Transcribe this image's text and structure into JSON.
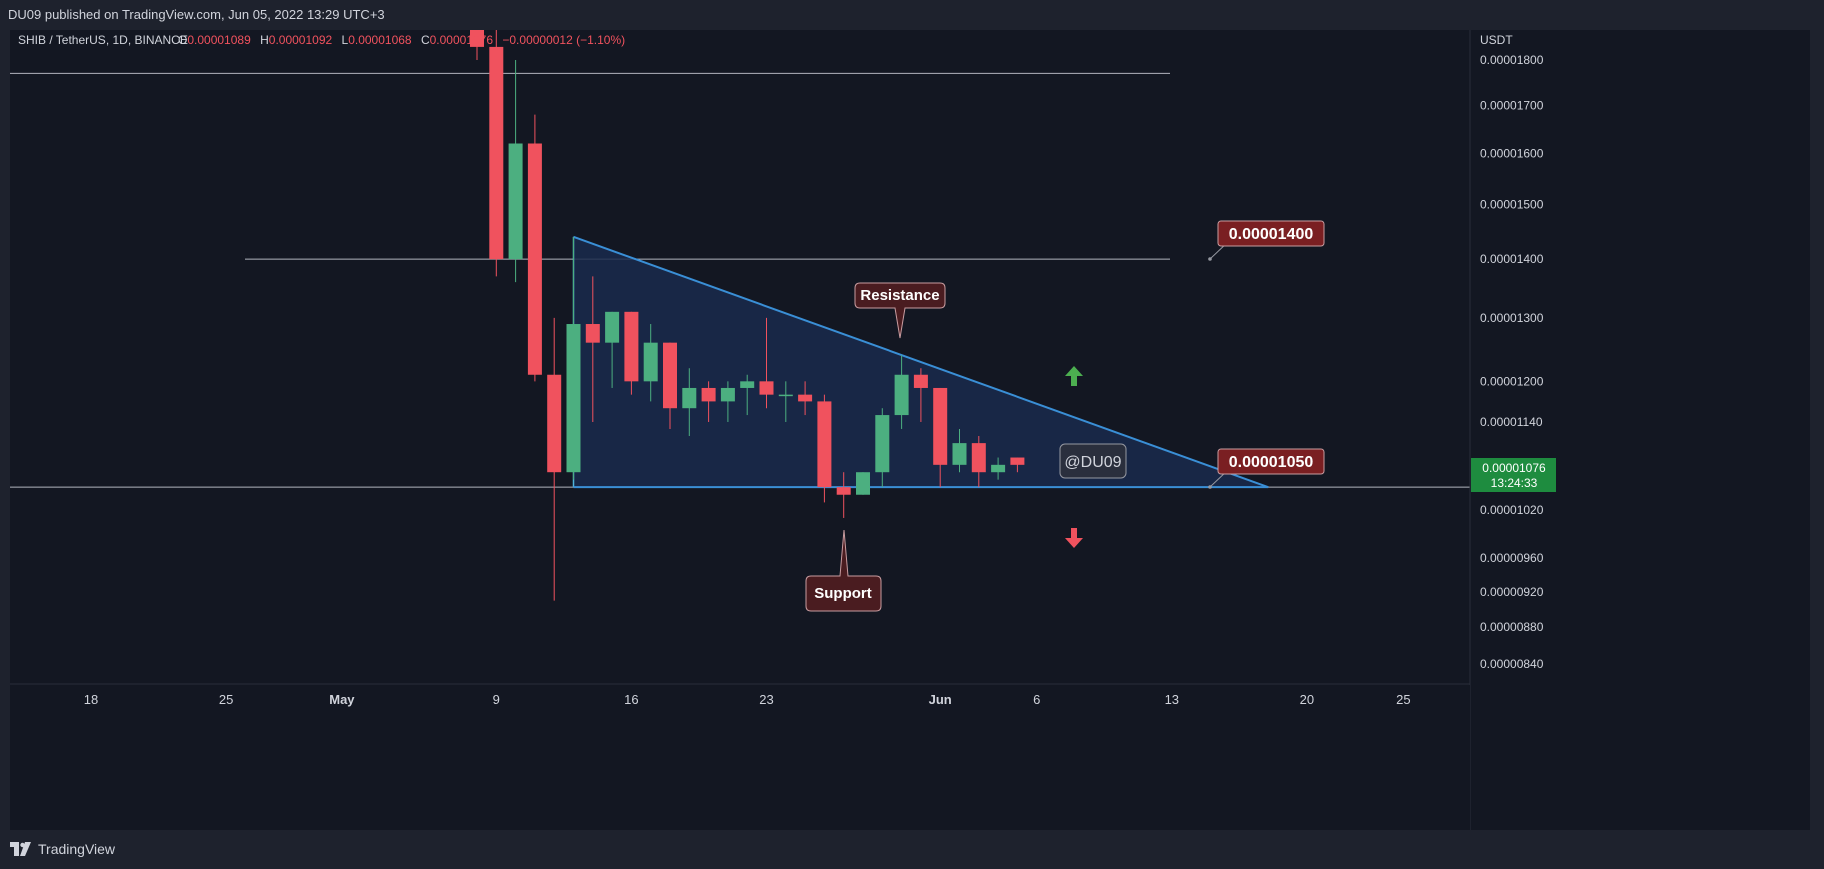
{
  "header": {
    "publisher_line": "DU09 published on TradingView.com, Jun 05, 2022 13:29 UTC+3"
  },
  "legend": {
    "symbol": "SHIB / TetherUS, 1D, BINANCE",
    "o_label": "O",
    "o_value": "0.00001089",
    "h_label": "H",
    "h_value": "0.00001092",
    "l_label": "L",
    "l_value": "0.00001068",
    "c_label": "C",
    "c_value": "0.00001076",
    "change": "−0.00000012 (−1.10%)"
  },
  "footer": {
    "brand": "TradingView"
  },
  "colors": {
    "up": "#4caf80",
    "down": "#f0525e",
    "background": "#131722",
    "triangle_fill": "#1a2a4c",
    "triangle_line": "#3a8fd6",
    "label_fill": "#7a1f22",
    "callout_fill": "#4a1c20"
  },
  "annotations": {
    "resistance": "Resistance",
    "support": "Support",
    "watermark": "@DU09",
    "level_high": "0.00001400",
    "level_low": "0.00001050",
    "arrow_up_icon": "arrow-up-icon",
    "arrow_down_icon": "arrow-down-icon"
  },
  "price_axis": {
    "currency": "USDT",
    "current_price": "0.00001076",
    "countdown": "13:24:33"
  },
  "chart_data": {
    "type": "candlestick",
    "title": "SHIB / TetherUS, 1D, BINANCE",
    "y_axis": {
      "scale": "log",
      "ticks": [
        "0.00001800",
        "0.00001700",
        "0.00001600",
        "0.00001500",
        "0.00001400",
        "0.00001300",
        "0.00001200",
        "0.00001140",
        "0.00001020",
        "0.00000960",
        "0.00000920",
        "0.00000880",
        "0.00000840"
      ],
      "range": [
        8.2e-06,
        1.85e-05
      ]
    },
    "x_axis": {
      "ticks": [
        "18",
        "25",
        "May",
        "9",
        "16",
        "23",
        "Jun",
        "6",
        "13",
        "20",
        "25"
      ]
    },
    "candles": [
      {
        "date": "2022-05-08",
        "open": 1.95e-05,
        "high": 2e-05,
        "low": 1.8e-05,
        "close": 1.83e-05
      },
      {
        "date": "2022-05-09",
        "open": 1.83e-05,
        "high": 1.87e-05,
        "low": 1.37e-05,
        "close": 1.4e-05
      },
      {
        "date": "2022-05-10",
        "open": 1.4e-05,
        "high": 1.8e-05,
        "low": 1.36e-05,
        "close": 1.62e-05
      },
      {
        "date": "2022-05-11",
        "open": 1.62e-05,
        "high": 1.68e-05,
        "low": 1.2e-05,
        "close": 1.21e-05
      },
      {
        "date": "2022-05-12",
        "open": 1.21e-05,
        "high": 1.3e-05,
        "low": 9.1e-06,
        "close": 1.07e-05
      },
      {
        "date": "2022-05-13",
        "open": 1.07e-05,
        "high": 1.44e-05,
        "low": 1.06e-05,
        "close": 1.29e-05
      },
      {
        "date": "2022-05-14",
        "open": 1.29e-05,
        "high": 1.37e-05,
        "low": 1.14e-05,
        "close": 1.26e-05
      },
      {
        "date": "2022-05-15",
        "open": 1.26e-05,
        "high": 1.31e-05,
        "low": 1.19e-05,
        "close": 1.31e-05
      },
      {
        "date": "2022-05-16",
        "open": 1.31e-05,
        "high": 1.31e-05,
        "low": 1.18e-05,
        "close": 1.2e-05
      },
      {
        "date": "2022-05-17",
        "open": 1.2e-05,
        "high": 1.29e-05,
        "low": 1.17e-05,
        "close": 1.26e-05
      },
      {
        "date": "2022-05-18",
        "open": 1.26e-05,
        "high": 1.26e-05,
        "low": 1.13e-05,
        "close": 1.16e-05
      },
      {
        "date": "2022-05-19",
        "open": 1.16e-05,
        "high": 1.22e-05,
        "low": 1.12e-05,
        "close": 1.19e-05
      },
      {
        "date": "2022-05-20",
        "open": 1.19e-05,
        "high": 1.2e-05,
        "low": 1.14e-05,
        "close": 1.17e-05
      },
      {
        "date": "2022-05-21",
        "open": 1.17e-05,
        "high": 1.2e-05,
        "low": 1.14e-05,
        "close": 1.19e-05
      },
      {
        "date": "2022-05-22",
        "open": 1.19e-05,
        "high": 1.21e-05,
        "low": 1.15e-05,
        "close": 1.2e-05
      },
      {
        "date": "2022-05-23",
        "open": 1.2e-05,
        "high": 1.3e-05,
        "low": 1.16e-05,
        "close": 1.18e-05
      },
      {
        "date": "2022-05-24",
        "open": 1.18e-05,
        "high": 1.2e-05,
        "low": 1.14e-05,
        "close": 1.18e-05
      },
      {
        "date": "2022-05-25",
        "open": 1.18e-05,
        "high": 1.2e-05,
        "low": 1.15e-05,
        "close": 1.17e-05
      },
      {
        "date": "2022-05-26",
        "open": 1.17e-05,
        "high": 1.18e-05,
        "low": 1.03e-05,
        "close": 1.05e-05
      },
      {
        "date": "2022-05-27",
        "open": 1.05e-05,
        "high": 1.07e-05,
        "low": 1.01e-05,
        "close": 1.04e-05
      },
      {
        "date": "2022-05-28",
        "open": 1.04e-05,
        "high": 1.07e-05,
        "low": 1.04e-05,
        "close": 1.07e-05
      },
      {
        "date": "2022-05-29",
        "open": 1.07e-05,
        "high": 1.16e-05,
        "low": 1.05e-05,
        "close": 1.15e-05
      },
      {
        "date": "2022-05-30",
        "open": 1.15e-05,
        "high": 1.24e-05,
        "low": 1.13e-05,
        "close": 1.21e-05
      },
      {
        "date": "2022-05-31",
        "open": 1.21e-05,
        "high": 1.22e-05,
        "low": 1.14e-05,
        "close": 1.19e-05
      },
      {
        "date": "2022-06-01",
        "open": 1.19e-05,
        "high": 1.19e-05,
        "low": 1.05e-05,
        "close": 1.08e-05
      },
      {
        "date": "2022-06-02",
        "open": 1.08e-05,
        "high": 1.13e-05,
        "low": 1.07e-05,
        "close": 1.11e-05
      },
      {
        "date": "2022-06-03",
        "open": 1.11e-05,
        "high": 1.12e-05,
        "low": 1.05e-05,
        "close": 1.07e-05
      },
      {
        "date": "2022-06-04",
        "open": 1.07e-05,
        "high": 1.09e-05,
        "low": 1.06e-05,
        "close": 1.08e-05
      },
      {
        "date": "2022-06-05",
        "open": 1.09e-05,
        "high": 1.09e-05,
        "low": 1.07e-05,
        "close": 1.08e-05
      }
    ],
    "horizontal_levels": [
      1.77e-05,
      1.4e-05,
      1.05e-05
    ],
    "pattern": {
      "type": "descending triangle",
      "apex_top": {
        "date": "2022-05-13",
        "value": 1.44e-05
      },
      "apex_right": {
        "date": "2022-06-18",
        "value": 1.05e-05
      },
      "base": 1.05e-05
    },
    "grid": false
  }
}
